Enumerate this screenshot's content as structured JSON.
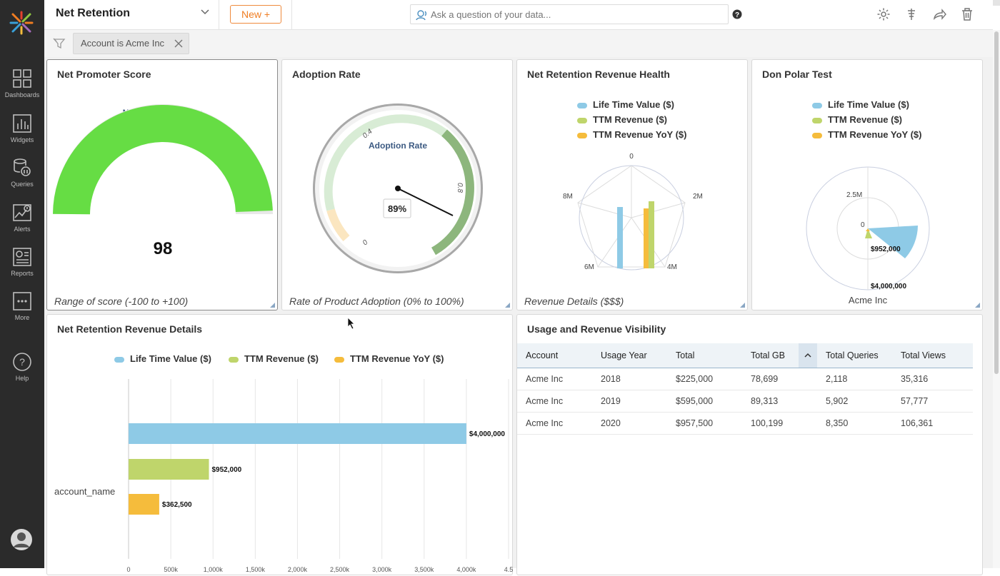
{
  "header": {
    "title": "Net Retention",
    "new_button": "New +",
    "ask_placeholder": "Ask a question of your data..."
  },
  "sidebar": {
    "items": [
      {
        "label": "Dashboards",
        "icon": "dashboards-icon"
      },
      {
        "label": "Widgets",
        "icon": "widgets-icon"
      },
      {
        "label": "Queries",
        "icon": "queries-icon"
      },
      {
        "label": "Alerts",
        "icon": "alerts-icon"
      },
      {
        "label": "Reports",
        "icon": "reports-icon"
      },
      {
        "label": "More",
        "icon": "more-icon"
      },
      {
        "label": "Help",
        "icon": "help-icon"
      }
    ]
  },
  "filter": {
    "chip": "Account is Acme Inc"
  },
  "widgets": {
    "nps": {
      "title": "Net Promoter Score",
      "chart_title": "Net Promoter Score",
      "value": "98",
      "footer": "Range of score (-100 to +100)",
      "color": "#66dd44"
    },
    "adoption": {
      "title": "Adoption Rate",
      "chart_title": "Adoption Rate",
      "value": "89%",
      "ticks": [
        "0",
        "0.4",
        "0.8"
      ],
      "footer": "Rate of Product Adoption (0% to 100%)"
    },
    "revenue_health": {
      "title": "Net Retention Revenue Health",
      "legend": [
        "Life Time Value ($)",
        "TTM Revenue ($)",
        "TTM Revenue YoY ($)"
      ],
      "axis_labels": [
        "0",
        "2M",
        "4M",
        "6M",
        "8M"
      ],
      "footer": "Revenue Details ($$$)"
    },
    "polar": {
      "title": "Don Polar Test",
      "legend": [
        "Life Time Value ($)",
        "TTM Revenue ($)",
        "TTM Revenue YoY ($)"
      ],
      "ring_labels": [
        "2.5M",
        "0"
      ],
      "data_labels": [
        "$952,000",
        "$4,000,000"
      ],
      "category": "Acme Inc"
    },
    "details": {
      "title": "Net Retention Revenue Details",
      "legend": [
        "Life Time Value ($)",
        "TTM Revenue ($)",
        "TTM Revenue YoY ($)"
      ],
      "category_label": "account_name"
    },
    "usage": {
      "title": "Usage and Revenue Visibility",
      "columns": [
        "Account",
        "Usage Year",
        "Total",
        "Total GB",
        "Total Queries",
        "Total Views"
      ],
      "rows": [
        [
          "Acme Inc",
          "2018",
          "$225,000",
          "78,699",
          "2,118",
          "35,316"
        ],
        [
          "Acme Inc",
          "2019",
          "$595,000",
          "89,313",
          "5,902",
          "57,777"
        ],
        [
          "Acme Inc",
          "2020",
          "$957,500",
          "100,199",
          "8,350",
          "106,361"
        ]
      ]
    }
  },
  "colors": {
    "ltv": "#8ecae6",
    "ttm": "#bfd56b",
    "yoy": "#f5bc3c",
    "accent": "#ef7d22"
  },
  "chart_data": [
    {
      "type": "bar",
      "orientation": "horizontal",
      "categories": [
        "account_name"
      ],
      "series": [
        {
          "name": "Life Time Value ($)",
          "values": [
            4000000
          ],
          "label": "$4,000,000"
        },
        {
          "name": "TTM Revenue ($)",
          "values": [
            952000
          ],
          "label": "$952,000"
        },
        {
          "name": "TTM Revenue YoY ($)",
          "values": [
            362500
          ],
          "label": "$362,500"
        }
      ],
      "xlim": [
        0,
        4500000
      ],
      "xticks": [
        "0",
        "500k",
        "1,000k",
        "1,500k",
        "2,000k",
        "2,500k",
        "3,000k",
        "3,500k",
        "4,000k",
        "4.5"
      ],
      "grid": true,
      "legend": "top"
    }
  ]
}
